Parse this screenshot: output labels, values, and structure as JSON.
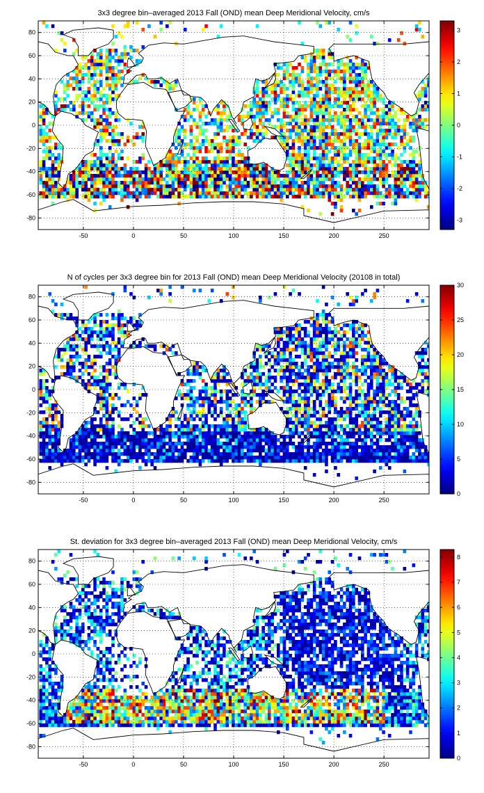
{
  "chart_data": [
    {
      "type": "heatmap",
      "title": "3x3 degree bin–averaged 2013 Fall (OND) mean Deep Meridional Velocity, cm/s",
      "x_ticks": [
        -50,
        0,
        50,
        100,
        150,
        200,
        250
      ],
      "y_ticks": [
        -80,
        -60,
        -40,
        -20,
        0,
        20,
        40,
        60,
        80
      ],
      "xlim": [
        -95,
        295
      ],
      "ylim": [
        -90,
        90
      ],
      "grid": true,
      "colormap": "jet",
      "colorbar": {
        "range": [
          -3.3,
          3.3
        ],
        "ticks": [
          -3,
          -2,
          -1,
          0,
          1,
          2,
          3
        ]
      },
      "bin_size_deg": 3,
      "seed": 11,
      "value_mode": "velocity"
    },
    {
      "type": "heatmap",
      "title": "N of cycles per 3x3 degree bin for 2013 Fall (OND) mean Deep Meridional Velocity (20108 in total)",
      "x_ticks": [
        -50,
        0,
        50,
        100,
        150,
        200,
        250
      ],
      "y_ticks": [
        -80,
        -60,
        -40,
        -20,
        0,
        20,
        40,
        60,
        80
      ],
      "xlim": [
        -95,
        295
      ],
      "ylim": [
        -90,
        90
      ],
      "grid": true,
      "colormap": "jet",
      "colorbar": {
        "range": [
          0,
          30
        ],
        "ticks": [
          0,
          5,
          10,
          15,
          20,
          25,
          30
        ]
      },
      "bin_size_deg": 3,
      "seed": 23,
      "value_mode": "count"
    },
    {
      "type": "heatmap",
      "title": "St. deviation for 3x3 degree bin–averaged 2013 Fall (OND) mean Deep Meridional Velocity, cm/s",
      "x_ticks": [
        -50,
        0,
        50,
        100,
        150,
        200,
        250
      ],
      "y_ticks": [
        -80,
        -60,
        -40,
        -20,
        0,
        20,
        40,
        60,
        80
      ],
      "xlim": [
        -95,
        295
      ],
      "ylim": [
        -90,
        90
      ],
      "grid": true,
      "colormap": "jet",
      "colorbar": {
        "range": [
          0,
          8.3
        ],
        "ticks": [
          0,
          1,
          2,
          3,
          4,
          5,
          6,
          7,
          8
        ]
      },
      "bin_size_deg": 3,
      "seed": 37,
      "value_mode": "stdev"
    }
  ]
}
